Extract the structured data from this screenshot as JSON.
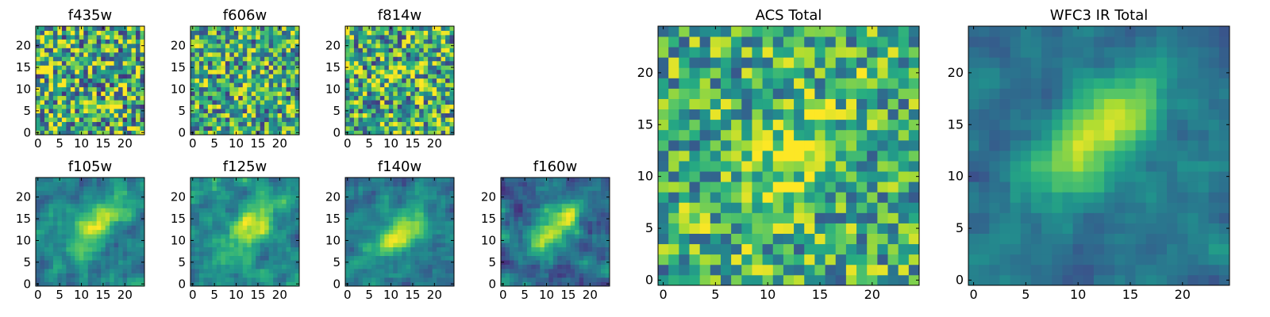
{
  "figure": {
    "background": "#ffffff"
  },
  "chart_data": [
    {
      "type": "heatmap",
      "title": "f435w",
      "xlim": [
        0,
        24
      ],
      "ylim": [
        0,
        24
      ],
      "xticks": [
        "0",
        "5",
        "10",
        "15",
        "20"
      ],
      "yticks": [
        "0",
        "5",
        "10",
        "15",
        "20"
      ],
      "colormap": "viridis",
      "structure": "noise",
      "noise_level": 0.95,
      "mean_level": 0.62
    },
    {
      "type": "heatmap",
      "title": "f606w",
      "xlim": [
        0,
        24
      ],
      "ylim": [
        0,
        24
      ],
      "xticks": [
        "0",
        "5",
        "10",
        "15",
        "20"
      ],
      "yticks": [
        "0",
        "5",
        "10",
        "15",
        "20"
      ],
      "colormap": "viridis",
      "structure": "noise",
      "noise_level": 0.85,
      "mean_level": 0.6
    },
    {
      "type": "heatmap",
      "title": "f814w",
      "xlim": [
        0,
        24
      ],
      "ylim": [
        0,
        24
      ],
      "xticks": [
        "0",
        "5",
        "10",
        "15",
        "20"
      ],
      "yticks": [
        "0",
        "5",
        "10",
        "15",
        "20"
      ],
      "colormap": "viridis",
      "structure": "noise",
      "noise_level": 0.9,
      "mean_level": 0.62
    },
    {
      "type": "heatmap",
      "title": "f105w",
      "xlim": [
        0,
        24
      ],
      "ylim": [
        0,
        24
      ],
      "xticks": [
        "0",
        "5",
        "10",
        "15",
        "20"
      ],
      "yticks": [
        "0",
        "5",
        "10",
        "15",
        "20"
      ],
      "colormap": "viridis",
      "structure": "source",
      "center": [
        14,
        14
      ],
      "noise_level": 0.45,
      "mean_level": 0.42
    },
    {
      "type": "heatmap",
      "title": "f125w",
      "xlim": [
        0,
        24
      ],
      "ylim": [
        0,
        24
      ],
      "xticks": [
        "0",
        "5",
        "10",
        "15",
        "20"
      ],
      "yticks": [
        "0",
        "5",
        "10",
        "15",
        "20"
      ],
      "colormap": "viridis",
      "structure": "source",
      "center": [
        13,
        13
      ],
      "noise_level": 0.5,
      "mean_level": 0.45
    },
    {
      "type": "heatmap",
      "title": "f140w",
      "xlim": [
        0,
        24
      ],
      "ylim": [
        0,
        24
      ],
      "xticks": [
        "0",
        "5",
        "10",
        "15",
        "20"
      ],
      "yticks": [
        "0",
        "5",
        "10",
        "15",
        "20"
      ],
      "colormap": "viridis",
      "structure": "source",
      "center": [
        12,
        12
      ],
      "noise_level": 0.45,
      "mean_level": 0.4
    },
    {
      "type": "heatmap",
      "title": "f160w",
      "xlim": [
        0,
        24
      ],
      "ylim": [
        0,
        24
      ],
      "xticks": [
        "0",
        "5",
        "10",
        "15",
        "20"
      ],
      "yticks": [
        "0",
        "5",
        "10",
        "15",
        "20"
      ],
      "colormap": "viridis",
      "structure": "source",
      "center": [
        12,
        13
      ],
      "noise_level": 0.5,
      "mean_level": 0.35
    },
    {
      "type": "heatmap",
      "title": "ACS Total",
      "xlim": [
        0,
        24
      ],
      "ylim": [
        0,
        24
      ],
      "xticks": [
        "0",
        "5",
        "10",
        "15",
        "20"
      ],
      "yticks": [
        "0",
        "5",
        "10",
        "15",
        "20"
      ],
      "colormap": "viridis",
      "structure": "noise+source",
      "center": [
        12,
        12
      ],
      "noise_level": 0.7,
      "mean_level": 0.62
    },
    {
      "type": "heatmap",
      "title": "WFC3 IR Total",
      "xlim": [
        0,
        24
      ],
      "ylim": [
        0,
        24
      ],
      "xticks": [
        "0",
        "5",
        "10",
        "15",
        "20"
      ],
      "yticks": [
        "0",
        "5",
        "10",
        "15",
        "20"
      ],
      "colormap": "viridis",
      "structure": "source",
      "center": [
        12,
        14
      ],
      "noise_level": 0.3,
      "mean_level": 0.38
    }
  ]
}
